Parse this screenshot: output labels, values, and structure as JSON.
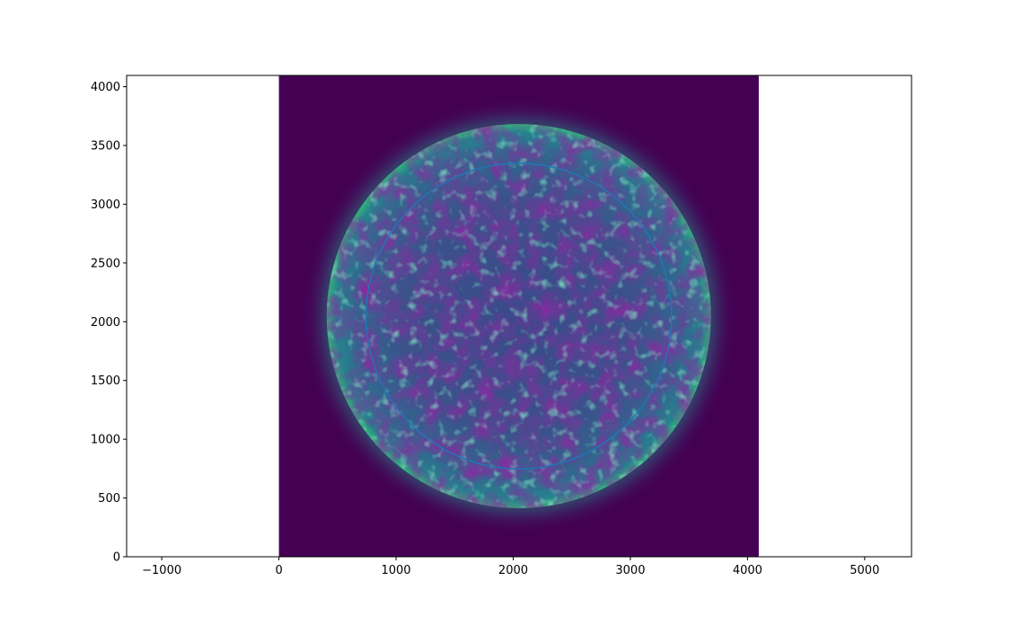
{
  "chart_data": {
    "type": "image",
    "title": "",
    "xlabel": "",
    "ylabel": "",
    "xlim": [
      -1300,
      5400
    ],
    "ylim": [
      0,
      4096
    ],
    "x_ticks": [
      -1000,
      0,
      1000,
      2000,
      3000,
      4000,
      5000
    ],
    "y_ticks": [
      0,
      500,
      1000,
      1500,
      2000,
      2500,
      3000,
      3500,
      4000
    ],
    "x_tick_labels": [
      "−1000",
      "0",
      "1000",
      "2000",
      "3000",
      "4000",
      "5000"
    ],
    "y_tick_labels": [
      "0",
      "500",
      "1000",
      "1500",
      "2000",
      "2500",
      "3000",
      "3500",
      "4000"
    ],
    "grid": false,
    "image": {
      "extent": [
        0,
        4096,
        0,
        4096
      ],
      "colormap": "viridis",
      "background_color": "#440154",
      "subject": "solar disk",
      "disk_center": [
        2048,
        2048
      ],
      "disk_radius": 1640,
      "corona_radius": 1850
    },
    "overlay_circle": {
      "center": [
        2048,
        2048
      ],
      "radius": 1300,
      "color": "#1f77b4"
    }
  }
}
